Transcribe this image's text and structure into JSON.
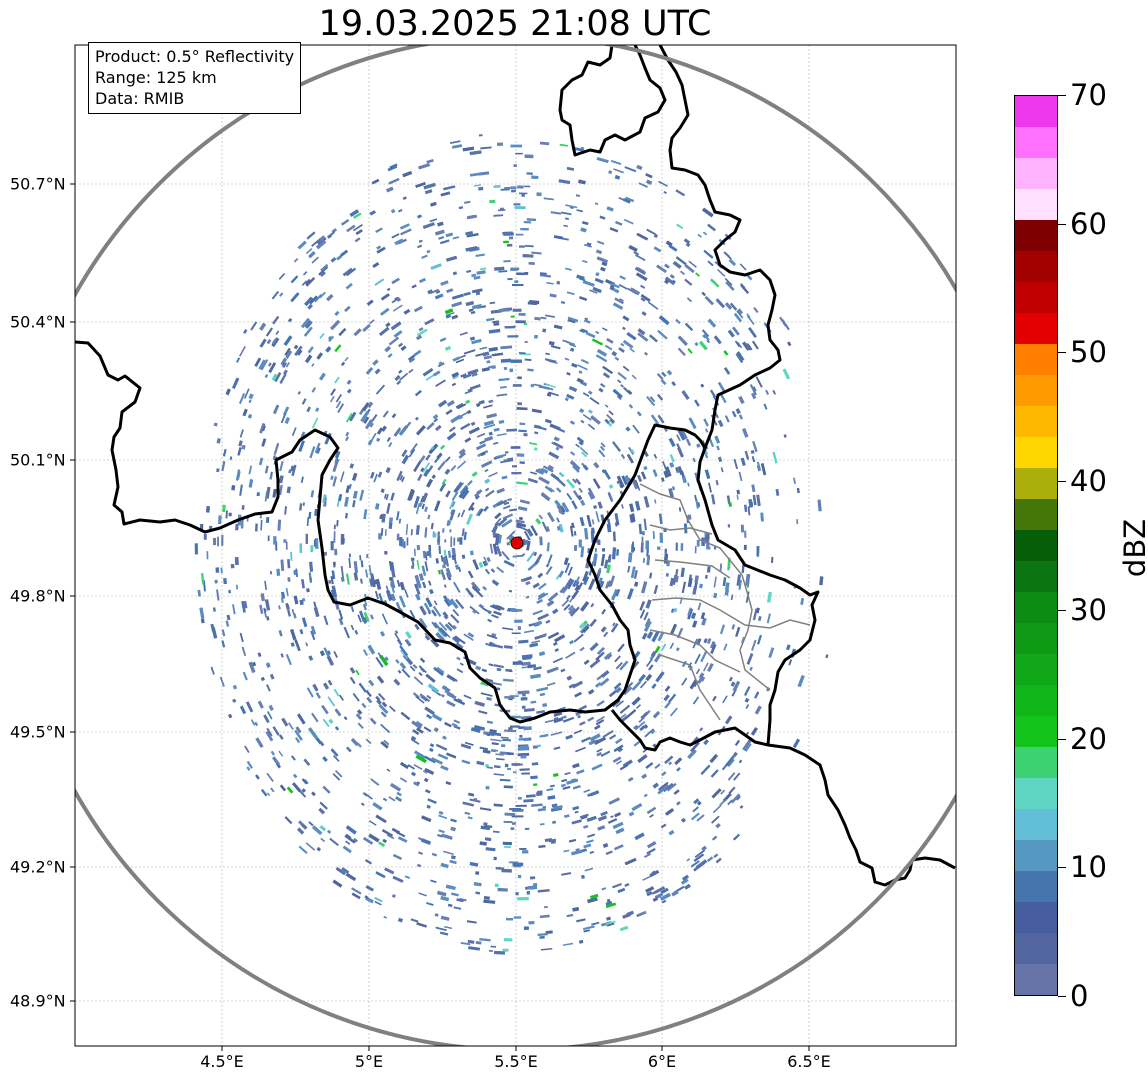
{
  "title": "19.03.2025 21:08 UTC",
  "info": {
    "product": "Product: 0.5° Reflectivity",
    "range": "Range: 125 km",
    "data": "Data: RMIB"
  },
  "lat_labels": [
    "50.7°N",
    "50.4°N",
    "50.1°N",
    "49.8°N",
    "49.5°N",
    "49.2°N",
    "48.9°N"
  ],
  "lon_labels": [
    "4.5°E",
    "5°E",
    "5.5°E",
    "6°E",
    "6.5°E"
  ],
  "radar_site": {
    "lon": 5.51,
    "lat": 49.91,
    "color": "#e00000"
  },
  "colorbar": {
    "unit": "dBZ",
    "ticks": [
      "0",
      "10",
      "20",
      "30",
      "40",
      "50",
      "60",
      "70"
    ],
    "colors": [
      "#6673a6",
      "#52659e",
      "#465da0",
      "#4675ae",
      "#5599c2",
      "#62bfd7",
      "#5fd6c3",
      "#3cd271",
      "#12c41a",
      "#10b618",
      "#10a819",
      "#0e9a14",
      "#0e8b12",
      "#0b7511",
      "#065f08",
      "#457608",
      "#acaf0a",
      "#ffd600",
      "#ffb800",
      "#ff9b00",
      "#ff7f00",
      "#e20000",
      "#c00000",
      "#a30000",
      "#7e0000",
      "#ffe0ff",
      "#ffb3ff",
      "#ff70ff",
      "#ee38ee"
    ]
  },
  "colors": {
    "border": "#000000",
    "admin_border": "#808080",
    "range_ring": "#808080",
    "echo": "#5a72a8",
    "grid": "#b0b0b0"
  }
}
